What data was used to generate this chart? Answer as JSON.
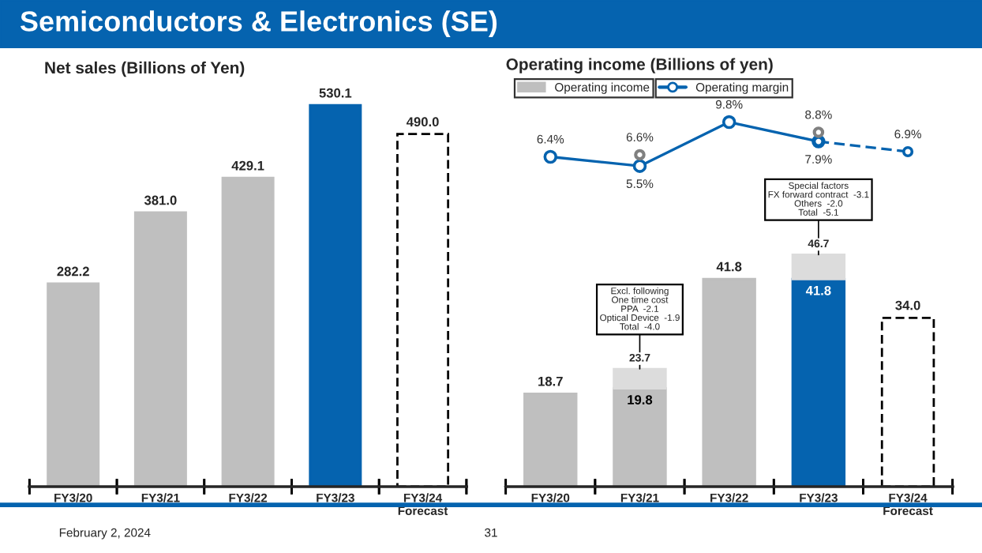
{
  "chart_data": [
    {
      "type": "bar",
      "title": "Semiconductors & Electronics (SE)",
      "subtitle": "Net sales (Billions of Yen)",
      "categories": [
        "FY3/20",
        "FY3/21",
        "FY3/22",
        "FY3/23",
        "FY3/24\nForecast"
      ],
      "tick_labels": "x",
      "series": [
        {
          "colors": [
            "#bfbfbf",
            "#bfbfbf",
            "#bfbfbf",
            "#0563af",
            null
          ],
          "values": [
            282.2,
            381.0,
            429.1,
            530.1,
            null
          ],
          "value_labels": [
            "282.2",
            "381.0",
            "429.1",
            "530.1",
            null
          ]
        },
        {
          "color": "#ffffff",
          "line_style": "dashed",
          "values": [
            null,
            null,
            null,
            null,
            490.0
          ],
          "value_labels": [
            null,
            null,
            null,
            null,
            "490.0"
          ]
        }
      ],
      "annotations": [
        "February 2, 2024",
        "31"
      ]
    },
    {
      "type": "bar",
      "categories": [
        "FY3/20",
        "FY3/21",
        "FY3/22",
        "FY3/23",
        "FY3/24\nForecast"
      ],
      "stacked": true,
      "tick_labels": "x",
      "legend": "top left",
      "series": [
        {
          "name": "Operating income",
          "color": "#bfbfbf",
          "colors": [
            "#bfbfbf",
            "#bfbfbf",
            "#bfbfbf",
            "#0563af",
            null
          ],
          "values": [
            18.7,
            19.8,
            41.8,
            41.8,
            null
          ],
          "value_labels": [
            "18.7",
            "19.8",
            "41.8",
            "41.8",
            null
          ]
        },
        {
          "color": "#dcdcdc",
          "values": [
            null,
            3.9,
            null,
            4.9,
            null
          ]
        },
        {
          "color": "#ffffff",
          "line_style": "dashed",
          "values": [
            null,
            null,
            null,
            null,
            34.0
          ],
          "value_labels": [
            null,
            null,
            null,
            null,
            "34.0"
          ]
        }
      ],
      "totals": [
        null,
        "23.7",
        null,
        "46.7",
        null
      ],
      "annotations": [
        {
          "text": "Excl. following\nOne time cost\nPPA  -2.1\nOptical Device  -1.9\nTotal  -4.0",
          "x": "FY3/21",
          "y": 23.7
        },
        {
          "text": "Special factors\nFX forward contract  -3.1\nOthers  -2.0\nTotal  -5.1",
          "x": "FY3/23",
          "y": 46.7
        }
      ]
    },
    {
      "type": "line",
      "title": "Operating income (Billions of yen)",
      "categories": [
        "FY3/20",
        "FY3/21",
        "FY3/22",
        "FY3/23",
        "FY3/24\nForecast"
      ],
      "tick_labels": false,
      "legend": "top left",
      "series": [
        {
          "name": "Operating margin",
          "color": "#0563af",
          "marker": "circle",
          "values": [
            6.4,
            5.5,
            9.8,
            7.9,
            null
          ],
          "value_labels": [
            "6.4%",
            "5.5%",
            "9.8%",
            "7.9%",
            null
          ]
        },
        {
          "color": "#0563af",
          "marker": "circle",
          "line_style": "dashed",
          "values": [
            null,
            null,
            null,
            7.9,
            6.9
          ],
          "value_labels": [
            null,
            null,
            null,
            null,
            "6.9%"
          ]
        },
        {
          "type": "scatter",
          "color": "#808080",
          "marker": "circle",
          "values": [
            null,
            6.6,
            null,
            8.8,
            null
          ],
          "value_labels": [
            null,
            "6.6%",
            null,
            "8.8%",
            null
          ]
        }
      ]
    }
  ]
}
